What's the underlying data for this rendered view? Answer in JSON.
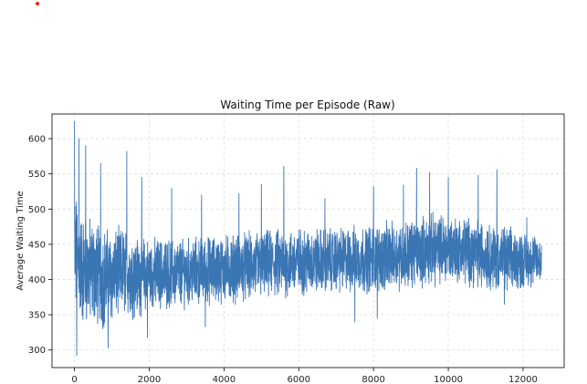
{
  "chart_data": {
    "type": "line",
    "title": "Waiting Time per Episode (Raw)",
    "xlabel": "",
    "ylabel": "Average Waiting Time",
    "xlim": [
      -600,
      13100
    ],
    "ylim": [
      275,
      635
    ],
    "xticks": [
      0,
      2000,
      4000,
      6000,
      8000,
      10000,
      12000
    ],
    "yticks": [
      300,
      350,
      400,
      450,
      500,
      550,
      600
    ],
    "grid": true,
    "n_points": 12500,
    "series": [
      {
        "color": "#3a75b4",
        "band": {
          "x": [
            0,
            200,
            500,
            800,
            1000,
            1300,
            1600,
            2000,
            3000,
            4000,
            5000,
            6000,
            7000,
            8000,
            8800,
            9200,
            9600,
            10000,
            10600,
            11000,
            11600,
            12000,
            12500
          ],
          "low": [
            350,
            340,
            340,
            335,
            345,
            355,
            350,
            360,
            365,
            370,
            375,
            380,
            385,
            385,
            390,
            395,
            395,
            400,
            395,
            390,
            385,
            390,
            395
          ],
          "high": [
            520,
            490,
            480,
            470,
            465,
            470,
            460,
            455,
            455,
            460,
            465,
            470,
            470,
            475,
            480,
            485,
            490,
            490,
            485,
            480,
            470,
            465,
            460
          ]
        },
        "spikes": [
          {
            "x": 0,
            "y": 625
          },
          {
            "x": 60,
            "y": 292
          },
          {
            "x": 120,
            "y": 600
          },
          {
            "x": 300,
            "y": 590
          },
          {
            "x": 700,
            "y": 565
          },
          {
            "x": 900,
            "y": 303
          },
          {
            "x": 1400,
            "y": 582
          },
          {
            "x": 1800,
            "y": 545
          },
          {
            "x": 1950,
            "y": 318
          },
          {
            "x": 2600,
            "y": 530
          },
          {
            "x": 3400,
            "y": 520
          },
          {
            "x": 3500,
            "y": 333
          },
          {
            "x": 4400,
            "y": 522
          },
          {
            "x": 5000,
            "y": 535
          },
          {
            "x": 5600,
            "y": 561
          },
          {
            "x": 6700,
            "y": 515
          },
          {
            "x": 7500,
            "y": 340
          },
          {
            "x": 8000,
            "y": 532
          },
          {
            "x": 8100,
            "y": 345
          },
          {
            "x": 8800,
            "y": 534
          },
          {
            "x": 9150,
            "y": 558
          },
          {
            "x": 9500,
            "y": 552
          },
          {
            "x": 10000,
            "y": 545
          },
          {
            "x": 10800,
            "y": 548
          },
          {
            "x": 11300,
            "y": 556
          },
          {
            "x": 11500,
            "y": 365
          },
          {
            "x": 12100,
            "y": 488
          }
        ]
      }
    ]
  },
  "marker": {
    "color": "#e8251b"
  }
}
